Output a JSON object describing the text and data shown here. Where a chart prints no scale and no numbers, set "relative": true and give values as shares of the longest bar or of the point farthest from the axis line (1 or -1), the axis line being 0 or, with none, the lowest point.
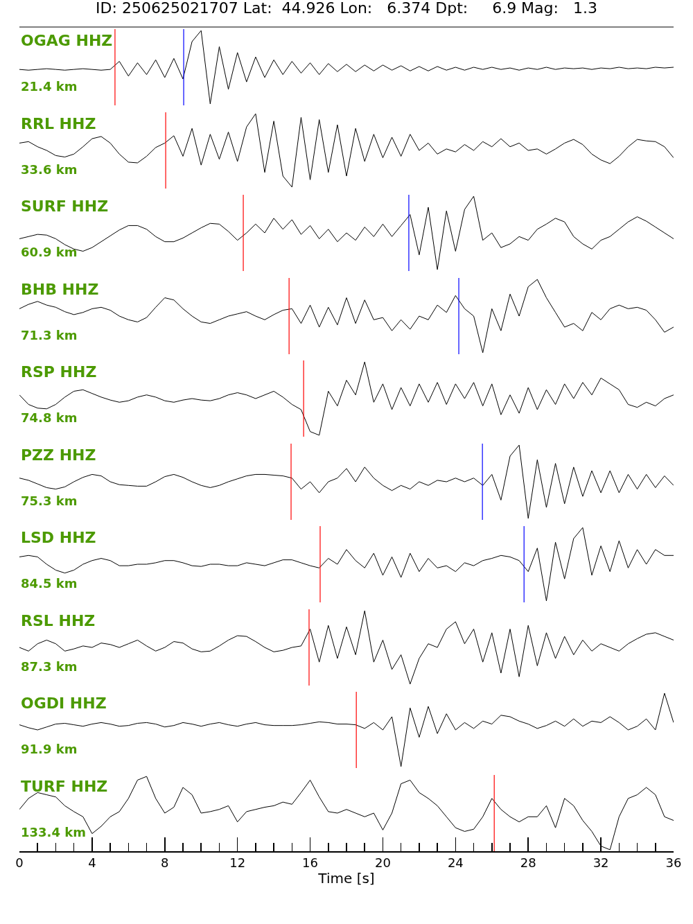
{
  "chart_data": [
    {
      "type": "line",
      "relative": true,
      "title": "ID: 250625021707 Lat:  44.926 Lon:   6.374 Dpt:     6.9 Mag:   1.3",
      "annotations": [
        "OGAG HHZ",
        "21.4 km"
      ],
      "tick_labels": false,
      "xlim": [
        0,
        36
      ],
      "x": [
        0,
        0.5,
        1,
        1.5,
        2,
        2.5,
        3,
        3.5,
        4,
        4.5,
        5,
        5.5,
        6,
        6.5,
        7,
        7.5,
        8,
        8.5,
        9,
        9.5,
        10,
        10.5,
        11,
        11.5,
        12,
        12.5,
        13,
        13.5,
        14,
        14.5,
        15,
        15.5,
        16,
        16.5,
        17,
        17.5,
        18,
        18.5,
        19,
        19.5,
        20,
        20.5,
        21,
        21.5,
        22,
        22.5,
        23,
        23.5,
        24,
        24.5,
        25,
        25.5,
        26,
        26.5,
        27,
        27.5,
        28,
        28.5,
        29,
        29.5,
        30,
        30.5,
        31,
        31.5,
        32,
        32.5,
        33,
        33.5,
        34,
        34.5,
        35,
        35.5,
        36
      ],
      "series": [
        {
          "color": "#000000",
          "values": [
            0.47,
            0.46,
            0.47,
            0.48,
            0.47,
            0.46,
            0.47,
            0.48,
            0.47,
            0.46,
            0.47,
            0.58,
            0.38,
            0.56,
            0.4,
            0.6,
            0.36,
            0.62,
            0.34,
            0.85,
            1,
            0,
            0.78,
            0.2,
            0.7,
            0.3,
            0.64,
            0.36,
            0.6,
            0.4,
            0.58,
            0.42,
            0.56,
            0.4,
            0.55,
            0.44,
            0.54,
            0.44,
            0.53,
            0.45,
            0.53,
            0.46,
            0.52,
            0.45,
            0.51,
            0.45,
            0.51,
            0.46,
            0.5,
            0.46,
            0.5,
            0.47,
            0.5,
            0.47,
            0.49,
            0.46,
            0.49,
            0.47,
            0.5,
            0.47,
            0.49,
            0.48,
            0.49,
            0.47,
            0.49,
            0.48,
            0.5,
            0.48,
            0.49,
            0.48,
            0.5,
            0.49,
            0.5
          ]
        }
      ],
      "ref_lines": [
        {
          "axis": "x",
          "value": 5.26,
          "color": "#ff0000"
        },
        {
          "axis": "x",
          "value": 9.04,
          "color": "#0000ff"
        }
      ]
    },
    {
      "type": "line",
      "relative": true,
      "annotations": [
        "RRL HHZ",
        "33.6 km"
      ],
      "tick_labels": false,
      "xlim": [
        0,
        36
      ],
      "x": [
        0,
        0.5,
        1,
        1.5,
        2,
        2.5,
        3,
        3.5,
        4,
        4.5,
        5,
        5.5,
        6,
        6.5,
        7,
        7.5,
        8,
        8.5,
        9,
        9.5,
        10,
        10.5,
        11,
        11.5,
        12,
        12.5,
        13,
        13.5,
        14,
        14.5,
        15,
        15.5,
        16,
        16.5,
        17,
        17.5,
        18,
        18.5,
        19,
        19.5,
        20,
        20.5,
        21,
        21.5,
        22,
        22.5,
        23,
        23.5,
        24,
        24.5,
        25,
        25.5,
        26,
        26.5,
        27,
        27.5,
        28,
        28.5,
        29,
        29.5,
        30,
        30.5,
        31,
        31.5,
        32,
        32.5,
        33,
        33.5,
        34,
        34.5,
        35,
        35.5,
        36
      ],
      "series": [
        {
          "color": "#000000",
          "values": [
            0.6,
            0.62,
            0.55,
            0.5,
            0.43,
            0.41,
            0.45,
            0.55,
            0.66,
            0.69,
            0.6,
            0.45,
            0.34,
            0.33,
            0.42,
            0.54,
            0.6,
            0.7,
            0.42,
            0.8,
            0.3,
            0.72,
            0.38,
            0.75,
            0.35,
            0.82,
            1,
            0.2,
            0.9,
            0.15,
            0,
            0.95,
            0.1,
            0.92,
            0.2,
            0.85,
            0.15,
            0.8,
            0.35,
            0.72,
            0.4,
            0.68,
            0.42,
            0.72,
            0.5,
            0.6,
            0.45,
            0.52,
            0.48,
            0.58,
            0.5,
            0.62,
            0.55,
            0.66,
            0.55,
            0.6,
            0.5,
            0.52,
            0.45,
            0.52,
            0.6,
            0.65,
            0.58,
            0.45,
            0.37,
            0.32,
            0.42,
            0.55,
            0.65,
            0.63,
            0.62,
            0.55,
            0.4
          ]
        }
      ],
      "ref_lines": [
        {
          "axis": "x",
          "value": 8.05,
          "color": "#ff0000"
        }
      ]
    },
    {
      "type": "line",
      "relative": true,
      "annotations": [
        "SURF HHZ",
        "60.9 km"
      ],
      "tick_labels": false,
      "xlim": [
        0,
        36
      ],
      "x": [
        0,
        0.5,
        1,
        1.5,
        2,
        2.5,
        3,
        3.5,
        4,
        4.5,
        5,
        5.5,
        6,
        6.5,
        7,
        7.5,
        8,
        8.5,
        9,
        9.5,
        10,
        10.5,
        11,
        11.5,
        12,
        12.5,
        13,
        13.5,
        14,
        14.5,
        15,
        15.5,
        16,
        16.5,
        17,
        17.5,
        18,
        18.5,
        19,
        19.5,
        20,
        20.5,
        21,
        21.5,
        22,
        22.5,
        23,
        23.5,
        24,
        24.5,
        25,
        25.5,
        26,
        26.5,
        27,
        27.5,
        28,
        28.5,
        29,
        29.5,
        30,
        30.5,
        31,
        31.5,
        32,
        32.5,
        33,
        33.5,
        34,
        34.5,
        35,
        35.5,
        36
      ],
      "series": [
        {
          "color": "#000000",
          "values": [
            0.42,
            0.45,
            0.48,
            0.47,
            0.42,
            0.34,
            0.28,
            0.25,
            0.3,
            0.38,
            0.46,
            0.54,
            0.6,
            0.6,
            0.55,
            0.45,
            0.38,
            0.38,
            0.43,
            0.5,
            0.57,
            0.63,
            0.62,
            0.52,
            0.4,
            0.5,
            0.62,
            0.5,
            0.7,
            0.55,
            0.68,
            0.48,
            0.6,
            0.42,
            0.55,
            0.38,
            0.5,
            0.4,
            0.58,
            0.45,
            0.62,
            0.45,
            0.6,
            0.75,
            0.2,
            0.85,
            0,
            0.8,
            0.25,
            0.82,
            1,
            0.4,
            0.5,
            0.3,
            0.35,
            0.45,
            0.4,
            0.55,
            0.62,
            0.7,
            0.65,
            0.45,
            0.35,
            0.28,
            0.4,
            0.45,
            0.55,
            0.65,
            0.72,
            0.66,
            0.58,
            0.5,
            0.42
          ]
        }
      ],
      "ref_lines": [
        {
          "axis": "x",
          "value": 12.32,
          "color": "#ff0000"
        },
        {
          "axis": "x",
          "value": 21.43,
          "color": "#0000ff"
        }
      ]
    },
    {
      "type": "line",
      "relative": true,
      "annotations": [
        "BHB HHZ",
        "71.3 km"
      ],
      "tick_labels": false,
      "xlim": [
        0,
        36
      ],
      "x": [
        0,
        0.5,
        1,
        1.5,
        2,
        2.5,
        3,
        3.5,
        4,
        4.5,
        5,
        5.5,
        6,
        6.5,
        7,
        7.5,
        8,
        8.5,
        9,
        9.5,
        10,
        10.5,
        11,
        11.5,
        12,
        12.5,
        13,
        13.5,
        14,
        14.5,
        15,
        15.5,
        16,
        16.5,
        17,
        17.5,
        18,
        18.5,
        19,
        19.5,
        20,
        20.5,
        21,
        21.5,
        22,
        22.5,
        23,
        23.5,
        24,
        24.5,
        25,
        25.5,
        26,
        26.5,
        27,
        27.5,
        28,
        28.5,
        29,
        29.5,
        30,
        30.5,
        31,
        31.5,
        32,
        32.5,
        33,
        33.5,
        34,
        34.5,
        35,
        35.5,
        36
      ],
      "series": [
        {
          "color": "#000000",
          "values": [
            0.6,
            0.66,
            0.7,
            0.65,
            0.62,
            0.56,
            0.52,
            0.55,
            0.6,
            0.62,
            0.58,
            0.5,
            0.45,
            0.42,
            0.48,
            0.62,
            0.75,
            0.72,
            0.6,
            0.5,
            0.42,
            0.4,
            0.45,
            0.5,
            0.53,
            0.56,
            0.5,
            0.45,
            0.52,
            0.58,
            0.6,
            0.4,
            0.65,
            0.35,
            0.62,
            0.38,
            0.75,
            0.4,
            0.72,
            0.45,
            0.48,
            0.3,
            0.45,
            0.32,
            0.5,
            0.45,
            0.65,
            0.55,
            0.78,
            0.6,
            0.5,
            0,
            0.6,
            0.3,
            0.8,
            0.5,
            0.9,
            1,
            0.75,
            0.55,
            0.35,
            0.4,
            0.3,
            0.55,
            0.45,
            0.6,
            0.65,
            0.6,
            0.62,
            0.58,
            0.45,
            0.28,
            0.35
          ]
        }
      ],
      "ref_lines": [
        {
          "axis": "x",
          "value": 14.84,
          "color": "#ff0000"
        },
        {
          "axis": "x",
          "value": 24.18,
          "color": "#0000ff"
        }
      ]
    },
    {
      "type": "line",
      "relative": true,
      "annotations": [
        "RSP HHZ",
        "74.8 km"
      ],
      "tick_labels": false,
      "xlim": [
        0,
        36
      ],
      "x": [
        0,
        0.5,
        1,
        1.5,
        2,
        2.5,
        3,
        3.5,
        4,
        4.5,
        5,
        5.5,
        6,
        6.5,
        7,
        7.5,
        8,
        8.5,
        9,
        9.5,
        10,
        10.5,
        11,
        11.5,
        12,
        12.5,
        13,
        13.5,
        14,
        14.5,
        15,
        15.5,
        16,
        16.5,
        17,
        17.5,
        18,
        18.5,
        19,
        19.5,
        20,
        20.5,
        21,
        21.5,
        22,
        22.5,
        23,
        23.5,
        24,
        24.5,
        25,
        25.5,
        26,
        26.5,
        27,
        27.5,
        28,
        28.5,
        29,
        29.5,
        30,
        30.5,
        31,
        31.5,
        32,
        32.5,
        33,
        33.5,
        34,
        34.5,
        35,
        35.5,
        36
      ],
      "series": [
        {
          "color": "#000000",
          "values": [
            0.55,
            0.42,
            0.37,
            0.36,
            0.42,
            0.52,
            0.6,
            0.62,
            0.57,
            0.52,
            0.48,
            0.45,
            0.47,
            0.52,
            0.55,
            0.52,
            0.47,
            0.45,
            0.48,
            0.5,
            0.48,
            0.47,
            0.5,
            0.55,
            0.58,
            0.55,
            0.5,
            0.55,
            0.6,
            0.52,
            0.42,
            0.35,
            0.05,
            0,
            0.6,
            0.4,
            0.75,
            0.55,
            1,
            0.45,
            0.7,
            0.35,
            0.65,
            0.4,
            0.7,
            0.45,
            0.72,
            0.42,
            0.7,
            0.5,
            0.72,
            0.4,
            0.7,
            0.28,
            0.55,
            0.3,
            0.65,
            0.35,
            0.62,
            0.42,
            0.7,
            0.5,
            0.72,
            0.55,
            0.78,
            0.7,
            0.62,
            0.42,
            0.38,
            0.45,
            0.4,
            0.5,
            0.55
          ]
        }
      ],
      "ref_lines": [
        {
          "axis": "x",
          "value": 15.64,
          "color": "#ff0000"
        }
      ]
    },
    {
      "type": "line",
      "relative": true,
      "annotations": [
        "PZZ HHZ",
        "75.3 km"
      ],
      "tick_labels": false,
      "xlim": [
        0,
        36
      ],
      "x": [
        0,
        0.5,
        1,
        1.5,
        2,
        2.5,
        3,
        3.5,
        4,
        4.5,
        5,
        5.5,
        6,
        6.5,
        7,
        7.5,
        8,
        8.5,
        9,
        9.5,
        10,
        10.5,
        11,
        11.5,
        12,
        12.5,
        13,
        13.5,
        14,
        14.5,
        15,
        15.5,
        16,
        16.5,
        17,
        17.5,
        18,
        18.5,
        19,
        19.5,
        20,
        20.5,
        21,
        21.5,
        22,
        22.5,
        23,
        23.5,
        24,
        24.5,
        25,
        25.5,
        26,
        26.5,
        27,
        27.5,
        28,
        28.5,
        29,
        29.5,
        30,
        30.5,
        31,
        31.5,
        32,
        32.5,
        33,
        33.5,
        34,
        34.5,
        35,
        35.5,
        36
      ],
      "series": [
        {
          "color": "#000000",
          "values": [
            0.55,
            0.52,
            0.47,
            0.42,
            0.4,
            0.43,
            0.5,
            0.56,
            0.6,
            0.58,
            0.5,
            0.46,
            0.45,
            0.44,
            0.44,
            0.5,
            0.57,
            0.6,
            0.56,
            0.5,
            0.45,
            0.42,
            0.45,
            0.5,
            0.54,
            0.58,
            0.6,
            0.6,
            0.59,
            0.58,
            0.55,
            0.4,
            0.5,
            0.35,
            0.5,
            0.55,
            0.68,
            0.5,
            0.7,
            0.55,
            0.45,
            0.38,
            0.45,
            0.4,
            0.5,
            0.45,
            0.52,
            0.5,
            0.55,
            0.5,
            0.55,
            0.45,
            0.6,
            0.25,
            0.85,
            1,
            0,
            0.8,
            0.15,
            0.75,
            0.2,
            0.7,
            0.3,
            0.65,
            0.35,
            0.65,
            0.35,
            0.6,
            0.4,
            0.6,
            0.42,
            0.58,
            0.45
          ]
        }
      ],
      "ref_lines": [
        {
          "axis": "x",
          "value": 14.95,
          "color": "#ff0000"
        },
        {
          "axis": "x",
          "value": 25.48,
          "color": "#0000ff"
        }
      ]
    },
    {
      "type": "line",
      "relative": true,
      "annotations": [
        "LSD HHZ",
        "84.5 km"
      ],
      "tick_labels": false,
      "xlim": [
        0,
        36
      ],
      "x": [
        0,
        0.5,
        1,
        1.5,
        2,
        2.5,
        3,
        3.5,
        4,
        4.5,
        5,
        5.5,
        6,
        6.5,
        7,
        7.5,
        8,
        8.5,
        9,
        9.5,
        10,
        10.5,
        11,
        11.5,
        12,
        12.5,
        13,
        13.5,
        14,
        14.5,
        15,
        15.5,
        16,
        16.5,
        17,
        17.5,
        18,
        18.5,
        19,
        19.5,
        20,
        20.5,
        21,
        21.5,
        22,
        22.5,
        23,
        23.5,
        24,
        24.5,
        25,
        25.5,
        26,
        26.5,
        27,
        27.5,
        28,
        28.5,
        29,
        29.5,
        30,
        30.5,
        31,
        31.5,
        32,
        32.5,
        33,
        33.5,
        34,
        34.5,
        35,
        35.5,
        36
      ],
      "series": [
        {
          "color": "#000000",
          "values": [
            0.6,
            0.62,
            0.6,
            0.5,
            0.42,
            0.38,
            0.42,
            0.5,
            0.55,
            0.58,
            0.55,
            0.48,
            0.48,
            0.5,
            0.5,
            0.52,
            0.55,
            0.55,
            0.52,
            0.48,
            0.47,
            0.5,
            0.5,
            0.48,
            0.48,
            0.52,
            0.5,
            0.48,
            0.52,
            0.56,
            0.56,
            0.52,
            0.48,
            0.45,
            0.58,
            0.5,
            0.7,
            0.55,
            0.45,
            0.65,
            0.35,
            0.6,
            0.32,
            0.65,
            0.4,
            0.58,
            0.45,
            0.48,
            0.4,
            0.52,
            0.48,
            0.55,
            0.58,
            0.62,
            0.6,
            0.55,
            0.4,
            0.72,
            0,
            0.8,
            0.3,
            0.85,
            1,
            0.35,
            0.75,
            0.4,
            0.82,
            0.45,
            0.7,
            0.5,
            0.7,
            0.62,
            0.62
          ]
        }
      ],
      "ref_lines": [
        {
          "axis": "x",
          "value": 16.55,
          "color": "#ff0000"
        },
        {
          "axis": "x",
          "value": 27.77,
          "color": "#0000ff"
        }
      ]
    },
    {
      "type": "line",
      "relative": true,
      "annotations": [
        "RSL HHZ",
        "87.3 km"
      ],
      "tick_labels": false,
      "xlim": [
        0,
        36
      ],
      "x": [
        0,
        0.5,
        1,
        1.5,
        2,
        2.5,
        3,
        3.5,
        4,
        4.5,
        5,
        5.5,
        6,
        6.5,
        7,
        7.5,
        8,
        8.5,
        9,
        9.5,
        10,
        10.5,
        11,
        11.5,
        12,
        12.5,
        13,
        13.5,
        14,
        14.5,
        15,
        15.5,
        16,
        16.5,
        17,
        17.5,
        18,
        18.5,
        19,
        19.5,
        20,
        20.5,
        21,
        21.5,
        22,
        22.5,
        23,
        23.5,
        24,
        24.5,
        25,
        25.5,
        26,
        26.5,
        27,
        27.5,
        28,
        28.5,
        29,
        29.5,
        30,
        30.5,
        31,
        31.5,
        32,
        32.5,
        33,
        33.5,
        34,
        34.5,
        35,
        35.5,
        36
      ],
      "series": [
        {
          "color": "#000000",
          "values": [
            0.5,
            0.45,
            0.55,
            0.6,
            0.55,
            0.45,
            0.48,
            0.52,
            0.5,
            0.56,
            0.54,
            0.5,
            0.55,
            0.6,
            0.52,
            0.45,
            0.5,
            0.58,
            0.56,
            0.48,
            0.44,
            0.45,
            0.52,
            0.6,
            0.66,
            0.65,
            0.58,
            0.5,
            0.44,
            0.46,
            0.5,
            0.52,
            0.75,
            0.3,
            0.8,
            0.35,
            0.78,
            0.4,
            1,
            0.3,
            0.6,
            0.2,
            0.4,
            0,
            0.35,
            0.55,
            0.5,
            0.75,
            0.85,
            0.55,
            0.75,
            0.3,
            0.7,
            0.15,
            0.75,
            0.1,
            0.8,
            0.25,
            0.7,
            0.35,
            0.65,
            0.4,
            0.6,
            0.45,
            0.55,
            0.5,
            0.45,
            0.55,
            0.62,
            0.68,
            0.7,
            0.65,
            0.6
          ]
        }
      ],
      "ref_lines": [
        {
          "axis": "x",
          "value": 15.94,
          "color": "#ff0000"
        }
      ]
    },
    {
      "type": "line",
      "relative": true,
      "annotations": [
        "OGDI HHZ",
        "91.9 km"
      ],
      "tick_labels": false,
      "xlim": [
        0,
        36
      ],
      "x": [
        0,
        0.5,
        1,
        1.5,
        2,
        2.5,
        3,
        3.5,
        4,
        4.5,
        5,
        5.5,
        6,
        6.5,
        7,
        7.5,
        8,
        8.5,
        9,
        9.5,
        10,
        10.5,
        11,
        11.5,
        12,
        12.5,
        13,
        13.5,
        14,
        14.5,
        15,
        15.5,
        16,
        16.5,
        17,
        17.5,
        18,
        18.5,
        19,
        19.5,
        20,
        20.5,
        21,
        21.5,
        22,
        22.5,
        23,
        23.5,
        24,
        24.5,
        25,
        25.5,
        26,
        26.5,
        27,
        27.5,
        28,
        28.5,
        29,
        29.5,
        30,
        30.5,
        31,
        31.5,
        32,
        32.5,
        33,
        33.5,
        34,
        34.5,
        35,
        35.5,
        36
      ],
      "series": [
        {
          "color": "#000000",
          "values": [
            0.57,
            0.53,
            0.5,
            0.54,
            0.58,
            0.59,
            0.57,
            0.55,
            0.58,
            0.6,
            0.58,
            0.55,
            0.56,
            0.59,
            0.6,
            0.58,
            0.54,
            0.56,
            0.6,
            0.58,
            0.55,
            0.58,
            0.6,
            0.57,
            0.55,
            0.58,
            0.6,
            0.57,
            0.56,
            0.56,
            0.56,
            0.57,
            0.59,
            0.61,
            0.6,
            0.58,
            0.58,
            0.57,
            0.52,
            0.6,
            0.5,
            0.68,
            0,
            0.8,
            0.4,
            0.82,
            0.45,
            0.72,
            0.5,
            0.6,
            0.52,
            0.62,
            0.58,
            0.7,
            0.68,
            0.62,
            0.58,
            0.52,
            0.56,
            0.62,
            0.55,
            0.65,
            0.55,
            0.62,
            0.6,
            0.68,
            0.6,
            0.5,
            0.55,
            0.65,
            0.5,
            1,
            0.6
          ]
        }
      ],
      "ref_lines": [
        {
          "axis": "x",
          "value": 18.54,
          "color": "#ff0000"
        }
      ]
    },
    {
      "type": "line",
      "relative": true,
      "annotations": [
        "TURF HHZ",
        "133.4 km"
      ],
      "xlabel": "Time [s]",
      "xlim": [
        0,
        36
      ],
      "xticks": [
        0,
        {
          "value": 1,
          "label": null
        },
        {
          "value": 2,
          "label": null
        },
        {
          "value": 3,
          "label": null
        },
        4,
        {
          "value": 5,
          "label": null
        },
        {
          "value": 6,
          "label": null
        },
        {
          "value": 7,
          "label": null
        },
        8,
        {
          "value": 9,
          "label": null
        },
        {
          "value": 10,
          "label": null
        },
        {
          "value": 11,
          "label": null
        },
        12,
        {
          "value": 13,
          "label": null
        },
        {
          "value": 14,
          "label": null
        },
        {
          "value": 15,
          "label": null
        },
        16,
        {
          "value": 17,
          "label": null
        },
        {
          "value": 18,
          "label": null
        },
        {
          "value": 19,
          "label": null
        },
        20,
        {
          "value": 21,
          "label": null
        },
        {
          "value": 22,
          "label": null
        },
        {
          "value": 23,
          "label": null
        },
        24,
        {
          "value": 25,
          "label": null
        },
        {
          "value": 26,
          "label": null
        },
        {
          "value": 27,
          "label": null
        },
        28,
        {
          "value": 29,
          "label": null
        },
        {
          "value": 30,
          "label": null
        },
        {
          "value": 31,
          "label": null
        },
        32,
        {
          "value": 33,
          "label": null
        },
        {
          "value": 34,
          "label": null
        },
        {
          "value": 35,
          "label": null
        },
        36
      ],
      "x": [
        0,
        0.5,
        1,
        1.5,
        2,
        2.5,
        3,
        3.5,
        4,
        4.5,
        5,
        5.5,
        6,
        6.5,
        7,
        7.5,
        8,
        8.5,
        9,
        9.5,
        10,
        10.5,
        11,
        11.5,
        12,
        12.5,
        13,
        13.5,
        14,
        14.5,
        15,
        15.5,
        16,
        16.5,
        17,
        17.5,
        18,
        18.5,
        19,
        19.5,
        20,
        20.5,
        21,
        21.5,
        22,
        22.5,
        23,
        23.5,
        24,
        24.5,
        25,
        25.5,
        26,
        26.5,
        27,
        27.5,
        28,
        28.5,
        29,
        29.5,
        30,
        30.5,
        31,
        31.5,
        32,
        32.5,
        33,
        33.5,
        34,
        34.5,
        35,
        35.5,
        36
      ],
      "series": [
        {
          "color": "#000000",
          "values": [
            0.55,
            0.7,
            0.78,
            0.75,
            0.72,
            0.6,
            0.52,
            0.45,
            0.22,
            0.32,
            0.45,
            0.52,
            0.7,
            0.95,
            1,
            0.7,
            0.5,
            0.58,
            0.85,
            0.75,
            0.5,
            0.52,
            0.55,
            0.6,
            0.38,
            0.52,
            0.55,
            0.58,
            0.6,
            0.65,
            0.62,
            0.78,
            0.95,
            0.72,
            0.52,
            0.5,
            0.55,
            0.5,
            0.45,
            0.5,
            0.27,
            0.5,
            0.9,
            0.95,
            0.78,
            0.7,
            0.6,
            0.45,
            0.3,
            0.25,
            0.28,
            0.45,
            0.7,
            0.55,
            0.45,
            0.38,
            0.45,
            0.45,
            0.6,
            0.3,
            0.7,
            0.6,
            0.4,
            0.25,
            0.05,
            0,
            0.45,
            0.7,
            0.75,
            0.85,
            0.75,
            0.45,
            0.4
          ]
        }
      ],
      "ref_lines": [
        {
          "axis": "x",
          "value": 26.13,
          "color": "#ff0000"
        }
      ]
    }
  ]
}
